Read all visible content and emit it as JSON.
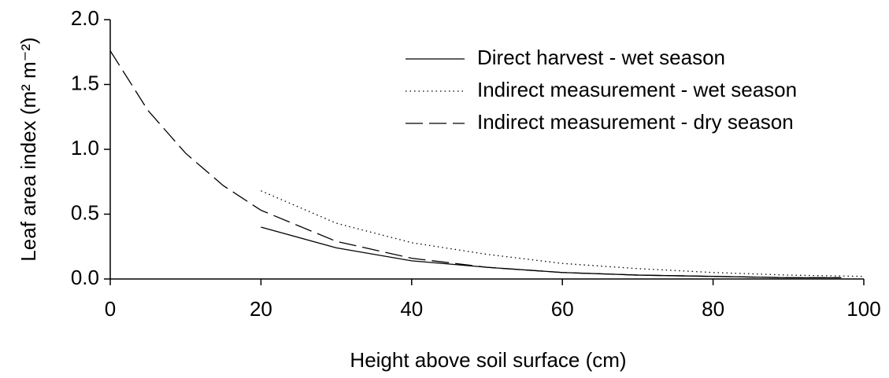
{
  "chart_data": {
    "type": "line",
    "xlabel": "Height above soil surface (cm)",
    "ylabel": "Leaf area index (m² m⁻²)",
    "xlim": [
      0,
      100
    ],
    "xticks": [
      0,
      20,
      40,
      60,
      80,
      100
    ],
    "ylim": [
      0,
      2.0
    ],
    "yticks": [
      {
        "value": 0,
        "label": "0.0"
      },
      {
        "value": 0.5,
        "label": "0.5"
      },
      {
        "value": 1.0,
        "label": "1.0"
      },
      {
        "value": 1.5,
        "label": "1.5"
      },
      {
        "value": 2.0,
        "label": "2.0"
      }
    ],
    "legend": "upper right",
    "series": [
      {
        "name": "Direct harvest - wet season",
        "color": "#000000",
        "style": "solid",
        "x": [
          20,
          30,
          40,
          50,
          60,
          70,
          80,
          90,
          97
        ],
        "values": [
          0.4,
          0.24,
          0.14,
          0.09,
          0.05,
          0.03,
          0.02,
          0.01,
          0.01
        ]
      },
      {
        "name": "Indirect measurement - wet season",
        "color": "#000000",
        "style": "dotted",
        "x": [
          20,
          30,
          40,
          50,
          60,
          70,
          80,
          90,
          100
        ],
        "values": [
          0.68,
          0.43,
          0.28,
          0.19,
          0.12,
          0.08,
          0.05,
          0.03,
          0.02
        ]
      },
      {
        "name": "Indirect measurement - dry season",
        "color": "#000000",
        "style": "dashed",
        "x": [
          0,
          5,
          10,
          15,
          20,
          30,
          40,
          50,
          60,
          70,
          80,
          90,
          97
        ],
        "values": [
          1.76,
          1.3,
          0.97,
          0.72,
          0.53,
          0.29,
          0.16,
          0.09,
          0.05,
          0.03,
          0.02,
          0.01,
          0.01
        ]
      }
    ]
  }
}
